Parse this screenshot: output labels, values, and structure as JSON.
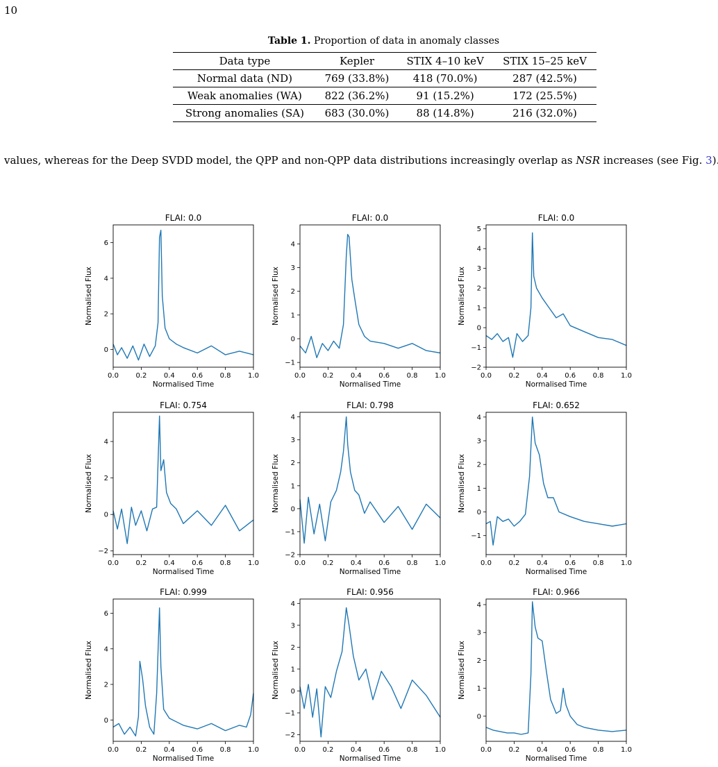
{
  "page_number": "10",
  "table": {
    "label": "Table 1.",
    "title": "Proportion of data in anomaly classes",
    "headers": [
      "Data type",
      "Kepler",
      "STIX 4–10 keV",
      "STIX 15–25 keV"
    ],
    "rows": [
      [
        "Normal data (ND)",
        "769 (33.8%)",
        "418 (70.0%)",
        "287 (42.5%)"
      ],
      [
        "Weak anomalies (WA)",
        "822 (36.2%)",
        "91 (15.2%)",
        "172 (25.5%)"
      ],
      [
        "Strong anomalies (SA)",
        "683 (30.0%)",
        "88 (14.8%)",
        "216 (32.0%)"
      ]
    ]
  },
  "paragraph": {
    "text_1": "values, whereas for the Deep SVDD model, the QPP and non-QPP data distributions increasingly overlap as ",
    "math": "NSR",
    "text_2": " increases (see Fig. ",
    "fig_ref": "3",
    "text_3": ")."
  },
  "figure": {
    "xlabel": "Normalised Time",
    "ylabel": "Normalised Flux",
    "line_color": "#1f77b4"
  },
  "chart_data": [
    {
      "type": "line",
      "title": "FLAI: 0.0",
      "xlabel": "Normalised Time",
      "ylabel": "Normalised Flux",
      "xlim": [
        0,
        1
      ],
      "ylim": [
        -1,
        7
      ],
      "xticks": [
        "0.0",
        "0.2",
        "0.4",
        "0.6",
        "0.8",
        "1.0"
      ],
      "yticks": [
        0,
        2,
        4,
        6
      ],
      "ytick_labels": [
        "0",
        "2",
        "4",
        "6"
      ],
      "x": [
        0,
        0.03,
        0.06,
        0.1,
        0.14,
        0.18,
        0.22,
        0.26,
        0.3,
        0.32,
        0.33,
        0.34,
        0.35,
        0.37,
        0.4,
        0.45,
        0.5,
        0.6,
        0.7,
        0.8,
        0.9,
        1.0
      ],
      "values": [
        0.3,
        -0.3,
        0.1,
        -0.5,
        0.2,
        -0.6,
        0.3,
        -0.4,
        0.2,
        1.5,
        6.3,
        6.7,
        3.0,
        1.2,
        0.6,
        0.3,
        0.1,
        -0.2,
        0.2,
        -0.3,
        -0.1,
        -0.3
      ]
    },
    {
      "type": "line",
      "title": "FLAI: 0.0",
      "xlabel": "Normalised Time",
      "ylabel": "Normalised Flux",
      "xlim": [
        0,
        1
      ],
      "ylim": [
        -1.2,
        4.8
      ],
      "xticks": [
        "0.0",
        "0.2",
        "0.4",
        "0.6",
        "0.8",
        "1.0"
      ],
      "yticks": [
        -1,
        0,
        1,
        2,
        3,
        4
      ],
      "ytick_labels": [
        "−1",
        "0",
        "1",
        "2",
        "3",
        "4"
      ],
      "x": [
        0,
        0.04,
        0.08,
        0.12,
        0.16,
        0.2,
        0.24,
        0.28,
        0.31,
        0.33,
        0.34,
        0.35,
        0.37,
        0.39,
        0.42,
        0.46,
        0.5,
        0.6,
        0.7,
        0.8,
        0.9,
        1.0
      ],
      "values": [
        -0.3,
        -0.6,
        0.1,
        -0.8,
        -0.2,
        -0.5,
        -0.1,
        -0.4,
        0.6,
        3.5,
        4.4,
        4.3,
        2.5,
        1.7,
        0.6,
        0.1,
        -0.1,
        -0.2,
        -0.4,
        -0.2,
        -0.5,
        -0.6
      ]
    },
    {
      "type": "line",
      "title": "FLAI: 0.0",
      "xlabel": "Normalised Time",
      "ylabel": "Normalised Flux",
      "xlim": [
        0,
        1
      ],
      "ylim": [
        -2,
        5.2
      ],
      "xticks": [
        "0.0",
        "0.2",
        "0.4",
        "0.6",
        "0.8",
        "1.0"
      ],
      "yticks": [
        -2,
        -1,
        0,
        1,
        2,
        3,
        4,
        5
      ],
      "ytick_labels": [
        "−2",
        "−1",
        "0",
        "1",
        "2",
        "3",
        "4",
        "5"
      ],
      "x": [
        0,
        0.04,
        0.08,
        0.12,
        0.16,
        0.19,
        0.22,
        0.26,
        0.3,
        0.32,
        0.33,
        0.34,
        0.36,
        0.4,
        0.45,
        0.5,
        0.55,
        0.6,
        0.7,
        0.8,
        0.9,
        1.0
      ],
      "values": [
        -0.4,
        -0.6,
        -0.3,
        -0.7,
        -0.5,
        -1.5,
        -0.3,
        -0.7,
        -0.4,
        1.0,
        4.8,
        2.6,
        2.0,
        1.5,
        1.0,
        0.5,
        0.7,
        0.1,
        -0.2,
        -0.5,
        -0.6,
        -0.9
      ]
    },
    {
      "type": "line",
      "title": "FLAI: 0.754",
      "xlabel": "Normalised Time",
      "ylabel": "Normalised Flux",
      "xlim": [
        0,
        1
      ],
      "ylim": [
        -2.2,
        5.6
      ],
      "xticks": [
        "0.0",
        "0.2",
        "0.4",
        "0.6",
        "0.8",
        "1.0"
      ],
      "yticks": [
        -2,
        0,
        2,
        4
      ],
      "ytick_labels": [
        "−2",
        "0",
        "2",
        "4"
      ],
      "x": [
        0,
        0.03,
        0.06,
        0.1,
        0.13,
        0.16,
        0.2,
        0.24,
        0.28,
        0.31,
        0.33,
        0.34,
        0.36,
        0.38,
        0.41,
        0.45,
        0.5,
        0.6,
        0.7,
        0.8,
        0.9,
        1.0
      ],
      "values": [
        0.2,
        -0.8,
        0.3,
        -1.6,
        0.4,
        -0.6,
        0.2,
        -0.9,
        0.3,
        0.4,
        5.4,
        2.4,
        3.0,
        1.2,
        0.6,
        0.3,
        -0.5,
        0.2,
        -0.6,
        0.5,
        -0.9,
        -0.3
      ]
    },
    {
      "type": "line",
      "title": "FLAI: 0.798",
      "xlabel": "Normalised Time",
      "ylabel": "Normalised Flux",
      "xlim": [
        0,
        1
      ],
      "ylim": [
        -2,
        4.2
      ],
      "xticks": [
        "0.0",
        "0.2",
        "0.4",
        "0.6",
        "0.8",
        "1.0"
      ],
      "yticks": [
        -2,
        -1,
        0,
        1,
        2,
        3,
        4
      ],
      "ytick_labels": [
        "−2",
        "−1",
        "0",
        "1",
        "2",
        "3",
        "4"
      ],
      "x": [
        0,
        0.03,
        0.06,
        0.1,
        0.14,
        0.18,
        0.22,
        0.26,
        0.29,
        0.31,
        0.33,
        0.34,
        0.36,
        0.39,
        0.42,
        0.46,
        0.5,
        0.6,
        0.7,
        0.8,
        0.9,
        1.0
      ],
      "values": [
        0.4,
        -1.5,
        0.5,
        -1.1,
        0.2,
        -1.4,
        0.3,
        0.8,
        1.6,
        2.5,
        4.0,
        2.8,
        1.6,
        0.8,
        0.6,
        -0.2,
        0.3,
        -0.6,
        0.1,
        -0.9,
        0.2,
        -0.4
      ]
    },
    {
      "type": "line",
      "title": "FLAI: 0.652",
      "xlabel": "Normalised Time",
      "ylabel": "Normalised Flux",
      "xlim": [
        0,
        1
      ],
      "ylim": [
        -1.8,
        4.2
      ],
      "xticks": [
        "0.0",
        "0.2",
        "0.4",
        "0.6",
        "0.8",
        "1.0"
      ],
      "yticks": [
        -1,
        0,
        1,
        2,
        3,
        4
      ],
      "ytick_labels": [
        "−1",
        "0",
        "1",
        "2",
        "3",
        "4"
      ],
      "x": [
        0,
        0.03,
        0.05,
        0.08,
        0.12,
        0.16,
        0.2,
        0.24,
        0.28,
        0.31,
        0.33,
        0.35,
        0.38,
        0.41,
        0.44,
        0.48,
        0.52,
        0.6,
        0.7,
        0.8,
        0.9,
        1.0
      ],
      "values": [
        -0.5,
        -0.4,
        -1.4,
        -0.2,
        -0.4,
        -0.3,
        -0.6,
        -0.4,
        -0.1,
        1.5,
        4.0,
        2.9,
        2.4,
        1.2,
        0.6,
        0.6,
        0.0,
        -0.2,
        -0.4,
        -0.5,
        -0.6,
        -0.5
      ]
    },
    {
      "type": "line",
      "title": "FLAI: 0.999",
      "xlabel": "Normalised Time",
      "ylabel": "Normalised Flux",
      "xlim": [
        0,
        1
      ],
      "ylim": [
        -1.2,
        6.8
      ],
      "xticks": [
        "0.0",
        "0.2",
        "0.4",
        "0.6",
        "0.8",
        "1.0"
      ],
      "yticks": [
        0,
        2,
        4,
        6
      ],
      "ytick_labels": [
        "0",
        "2",
        "4",
        "6"
      ],
      "x": [
        0,
        0.04,
        0.08,
        0.12,
        0.16,
        0.18,
        0.19,
        0.21,
        0.23,
        0.26,
        0.29,
        0.31,
        0.33,
        0.34,
        0.36,
        0.4,
        0.5,
        0.6,
        0.7,
        0.8,
        0.9,
        0.95,
        0.98,
        1.0
      ],
      "values": [
        -0.4,
        -0.2,
        -0.8,
        -0.4,
        -0.9,
        0.2,
        3.3,
        2.3,
        0.8,
        -0.4,
        -0.8,
        1.5,
        6.3,
        3.0,
        0.6,
        0.1,
        -0.3,
        -0.5,
        -0.2,
        -0.6,
        -0.3,
        -0.4,
        0.3,
        1.5
      ]
    },
    {
      "type": "line",
      "title": "FLAI: 0.956",
      "xlabel": "Normalised Time",
      "ylabel": "Normalised Flux",
      "xlim": [
        0,
        1
      ],
      "ylim": [
        -2.3,
        4.2
      ],
      "xticks": [
        "0.0",
        "0.2",
        "0.4",
        "0.6",
        "0.8",
        "1.0"
      ],
      "yticks": [
        -2,
        -1,
        0,
        1,
        2,
        3,
        4
      ],
      "ytick_labels": [
        "−2",
        "−1",
        "0",
        "1",
        "2",
        "3",
        "4"
      ],
      "x": [
        0,
        0.03,
        0.06,
        0.09,
        0.12,
        0.15,
        0.18,
        0.22,
        0.26,
        0.3,
        0.33,
        0.35,
        0.38,
        0.42,
        0.47,
        0.52,
        0.58,
        0.65,
        0.72,
        0.8,
        0.9,
        1.0
      ],
      "values": [
        0.2,
        -0.8,
        0.3,
        -1.2,
        0.1,
        -2.1,
        0.2,
        -0.3,
        0.9,
        1.8,
        3.8,
        3.0,
        1.6,
        0.5,
        1.0,
        -0.4,
        0.9,
        0.2,
        -0.8,
        0.5,
        -0.2,
        -1.2
      ]
    },
    {
      "type": "line",
      "title": "FLAI: 0.966",
      "xlabel": "Normalised Time",
      "ylabel": "Normalised Flux",
      "xlim": [
        0,
        1
      ],
      "ylim": [
        -0.9,
        4.2
      ],
      "xticks": [
        "0.0",
        "0.2",
        "0.4",
        "0.6",
        "0.8",
        "1.0"
      ],
      "yticks": [
        0,
        1,
        2,
        3,
        4
      ],
      "ytick_labels": [
        "0",
        "1",
        "2",
        "3",
        "4"
      ],
      "x": [
        0,
        0.05,
        0.1,
        0.15,
        0.2,
        0.25,
        0.3,
        0.32,
        0.33,
        0.35,
        0.37,
        0.4,
        0.43,
        0.46,
        0.5,
        0.53,
        0.55,
        0.57,
        0.6,
        0.65,
        0.7,
        0.8,
        0.9,
        1.0
      ],
      "values": [
        -0.4,
        -0.5,
        -0.55,
        -0.6,
        -0.6,
        -0.65,
        -0.6,
        1.5,
        4.1,
        3.2,
        2.8,
        2.7,
        1.6,
        0.6,
        0.1,
        0.2,
        1.0,
        0.4,
        0.0,
        -0.3,
        -0.4,
        -0.5,
        -0.55,
        -0.5
      ]
    }
  ]
}
